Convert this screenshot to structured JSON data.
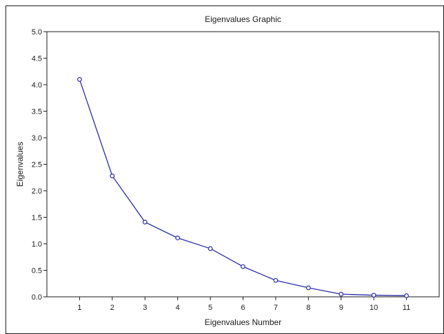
{
  "chart_data": {
    "type": "line",
    "title": "Eigenvalues Graphic",
    "xlabel": "Eigenvalues Number",
    "ylabel": "Eigenvalues",
    "x": [
      1,
      2,
      3,
      4,
      5,
      6,
      7,
      8,
      9,
      10,
      11
    ],
    "series": [
      {
        "values": [
          4.1,
          2.28,
          1.41,
          1.11,
          0.91,
          0.57,
          0.31,
          0.17,
          0.05,
          0.03,
          0.02
        ]
      }
    ],
    "xticks": [
      "1",
      "2",
      "3",
      "4",
      "5",
      "6",
      "7",
      "8",
      "9",
      "10",
      "11"
    ],
    "yticks": [
      "0.0",
      "0.5",
      "1.0",
      "1.5",
      "2.0",
      "2.5",
      "3.0",
      "3.5",
      "4.0",
      "4.5",
      "5.0"
    ],
    "xlim": [
      0,
      12
    ],
    "ylim": [
      0,
      5
    ],
    "grid": false,
    "marker": "open-circle",
    "line_color": "#2b2ba8"
  }
}
